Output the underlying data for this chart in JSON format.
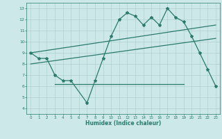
{
  "series1_x": [
    0,
    1,
    2,
    3,
    4,
    5,
    7,
    8,
    9,
    10,
    11,
    12,
    13,
    14,
    15,
    16,
    17,
    18,
    19,
    20,
    21,
    22,
    23
  ],
  "series1_y": [
    9.0,
    8.5,
    8.5,
    7.0,
    6.5,
    6.5,
    4.5,
    6.5,
    8.5,
    10.5,
    12.0,
    12.6,
    12.3,
    11.5,
    12.2,
    11.5,
    13.0,
    12.2,
    11.8,
    10.5,
    9.0,
    7.5,
    6.0
  ],
  "series2_x": [
    0,
    23
  ],
  "series2_y": [
    9.0,
    11.5
  ],
  "series3_x": [
    0,
    23
  ],
  "series3_y": [
    8.0,
    10.3
  ],
  "series4_x": [
    3,
    19
  ],
  "series4_y": [
    6.2,
    6.2
  ],
  "line_color": "#2a7a6e",
  "bg_color": "#cce8e8",
  "grid_color": "#b0d0d0",
  "xlabel": "Humidex (Indice chaleur)",
  "xlim": [
    -0.5,
    23.5
  ],
  "ylim": [
    3.5,
    13.5
  ],
  "yticks": [
    4,
    5,
    6,
    7,
    8,
    9,
    10,
    11,
    12,
    13
  ],
  "xticks": [
    0,
    1,
    2,
    3,
    4,
    5,
    6,
    7,
    8,
    9,
    10,
    11,
    12,
    13,
    14,
    15,
    16,
    17,
    18,
    19,
    20,
    21,
    22,
    23
  ]
}
